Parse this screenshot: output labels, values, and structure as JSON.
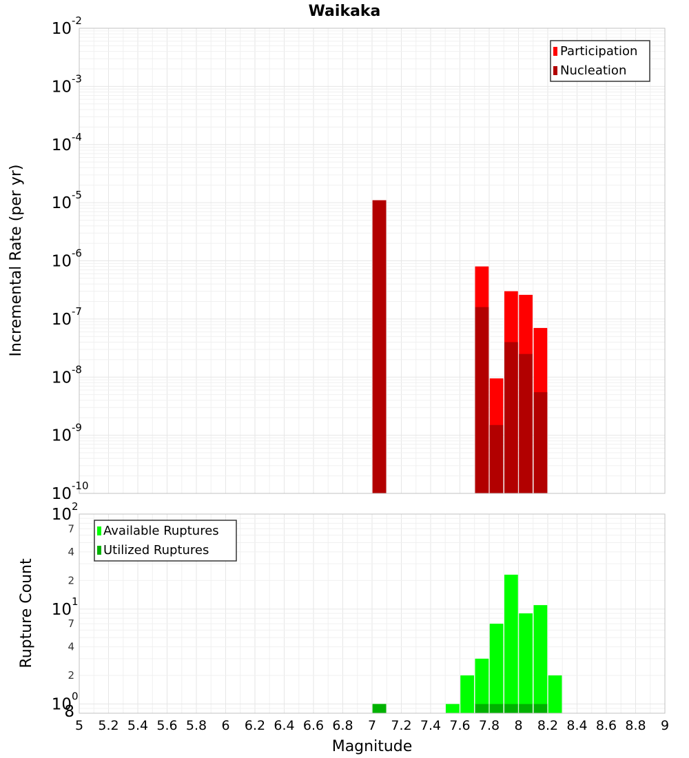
{
  "chart_data": [
    {
      "type": "bar",
      "title": "Waikaka",
      "xlabel": "",
      "ylabel": "Incremental Rate (per yr)",
      "yscale": "log",
      "ylim": [
        1e-10,
        0.01
      ],
      "xlim": [
        5,
        9
      ],
      "bar_width": 0.1,
      "grid": true,
      "legend_position": "top-right",
      "y_ticks": [
        {
          "base": "10",
          "exp": "-10"
        },
        {
          "base": "10",
          "exp": "-9"
        },
        {
          "base": "10",
          "exp": "-8"
        },
        {
          "base": "10",
          "exp": "-7"
        },
        {
          "base": "10",
          "exp": "-6"
        },
        {
          "base": "10",
          "exp": "-5"
        },
        {
          "base": "10",
          "exp": "-4"
        },
        {
          "base": "10",
          "exp": "-3"
        },
        {
          "base": "10",
          "exp": "-2"
        }
      ],
      "series": [
        {
          "name": "Participation",
          "color": "#ff0000",
          "x": [
            7.05,
            7.75,
            7.85,
            7.95,
            8.05,
            8.15
          ],
          "values": [
            1.1e-05,
            8e-07,
            9.5e-09,
            3e-07,
            2.6e-07,
            7e-08
          ]
        },
        {
          "name": "Nucleation",
          "color": "#b20000",
          "x": [
            7.05,
            7.75,
            7.85,
            7.95,
            8.05,
            8.15
          ],
          "values": [
            1.1e-05,
            1.6e-07,
            1.5e-09,
            4e-08,
            2.5e-08,
            5.5e-09
          ]
        }
      ]
    },
    {
      "type": "bar",
      "title": "",
      "xlabel": "Magnitude",
      "ylabel": "Rupture Count",
      "yscale": "log",
      "ylim": [
        0.8,
        100
      ],
      "xlim": [
        5,
        9
      ],
      "bar_width": 0.1,
      "grid": true,
      "legend_position": "top-left",
      "x_ticks": [
        "5",
        "5.2",
        "5.4",
        "5.6",
        "5.8",
        "6",
        "6.2",
        "6.4",
        "6.6",
        "6.8",
        "7",
        "7.2",
        "7.4",
        "7.6",
        "7.8",
        "8",
        "8.2",
        "8.4",
        "8.6",
        "8.8",
        "9"
      ],
      "y_major_ticks": [
        {
          "base": "10",
          "exp": "0"
        },
        {
          "base": "10",
          "exp": "1"
        },
        {
          "base": "10",
          "exp": "2"
        }
      ],
      "y_minor_ticks": [
        {
          "label": "8",
          "value": 0.8
        },
        {
          "label": "2",
          "value": 2
        },
        {
          "label": "4",
          "value": 4
        },
        {
          "label": "7",
          "value": 7
        },
        {
          "label": "2",
          "value": 20
        },
        {
          "label": "4",
          "value": 40
        },
        {
          "label": "7",
          "value": 70
        }
      ],
      "series": [
        {
          "name": "Available Ruptures",
          "color": "#00ff00",
          "x": [
            7.05,
            7.55,
            7.65,
            7.75,
            7.85,
            7.95,
            8.05,
            8.15,
            8.25
          ],
          "values": [
            1,
            1,
            2,
            3,
            7,
            23,
            9,
            11,
            2
          ]
        },
        {
          "name": "Utilized Ruptures",
          "color": "#00b200",
          "x": [
            7.05,
            7.75,
            7.85,
            7.95,
            8.05,
            8.15
          ],
          "values": [
            1,
            1,
            1,
            1,
            1,
            1
          ]
        }
      ]
    }
  ]
}
